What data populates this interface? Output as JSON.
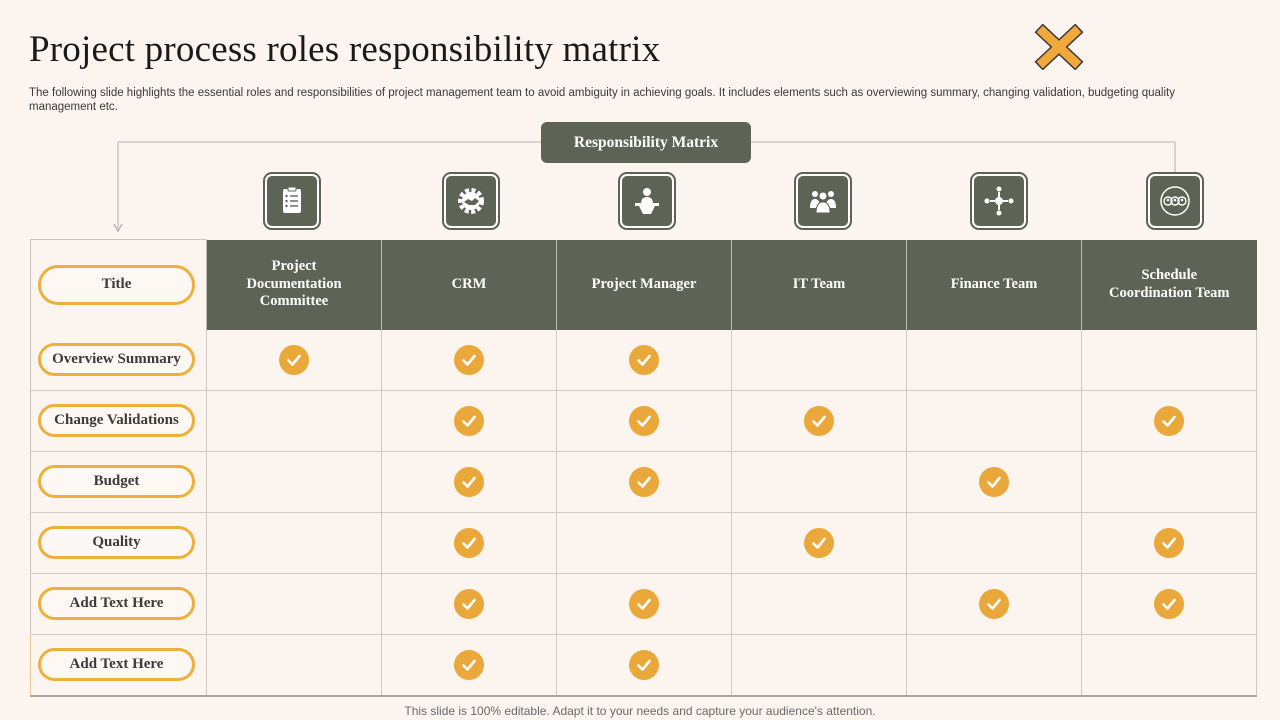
{
  "slide": {
    "title": "Project process roles responsibility matrix",
    "subtitle": "The following slide highlights the essential roles and responsibilities of project management team to avoid ambiguity in achieving goals. It includes elements such as overviewing summary, changing validation, budgeting quality management etc.",
    "matrix_label": "Responsibility Matrix",
    "footer": "This slide is 100% editable. Adapt it to your needs and capture your audience's attention."
  },
  "colors": {
    "header_bg": "#5e6455",
    "accent": "#eba83a",
    "background": "#fbf4ef"
  },
  "table": {
    "corner_label": "Title",
    "columns": [
      {
        "label": "Project Documentation Committee",
        "icon": "clipboard-checklist-icon"
      },
      {
        "label": "CRM",
        "icon": "handshake-gear-icon"
      },
      {
        "label": "Project Manager",
        "icon": "manager-presentation-icon"
      },
      {
        "label": "IT Team",
        "icon": "team-group-icon"
      },
      {
        "label": "Finance Team",
        "icon": "network-people-icon"
      },
      {
        "label": "Schedule Coordination Team",
        "icon": "people-circle-icon"
      }
    ],
    "rows": [
      {
        "label": "Overview Summary",
        "checks": [
          true,
          true,
          true,
          false,
          false,
          false
        ]
      },
      {
        "label": "Change Validations",
        "checks": [
          false,
          true,
          true,
          true,
          false,
          true
        ]
      },
      {
        "label": "Budget",
        "checks": [
          false,
          true,
          true,
          false,
          true,
          false
        ]
      },
      {
        "label": "Quality",
        "checks": [
          false,
          true,
          false,
          true,
          false,
          true
        ]
      },
      {
        "label": "Add Text Here",
        "checks": [
          false,
          true,
          true,
          false,
          true,
          true
        ]
      },
      {
        "label": "Add Text Here",
        "checks": [
          false,
          true,
          true,
          false,
          false,
          false
        ]
      }
    ]
  }
}
